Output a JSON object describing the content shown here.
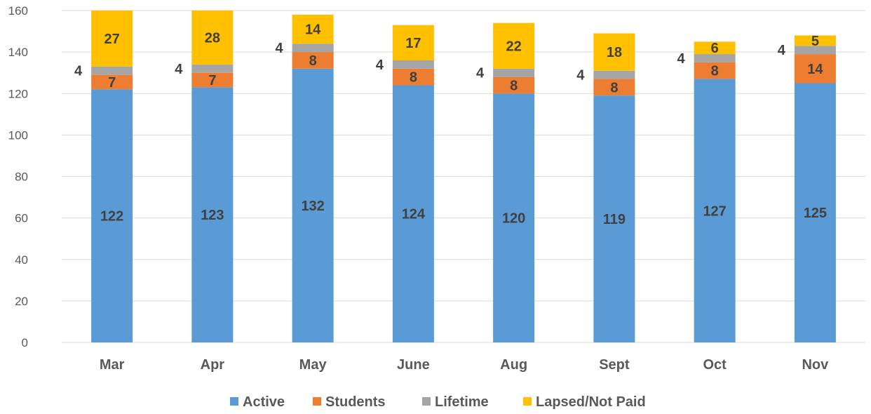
{
  "chart_data": {
    "type": "bar",
    "stacked": true,
    "categories": [
      "Mar",
      "Apr",
      "May",
      "June",
      "Aug",
      "Sept",
      "Oct",
      "Nov"
    ],
    "series": [
      {
        "name": "Active",
        "values": [
          122,
          123,
          132,
          124,
          120,
          119,
          127,
          125
        ],
        "color": "#5B9BD5"
      },
      {
        "name": "Students",
        "values": [
          7,
          7,
          8,
          8,
          8,
          8,
          8,
          14
        ],
        "color": "#ED7D31"
      },
      {
        "name": "Lifetime",
        "values": [
          4,
          4,
          4,
          4,
          4,
          4,
          4,
          4
        ],
        "color": "#A5A5A5"
      },
      {
        "name": "Lapsed/Not Paid",
        "values": [
          27,
          28,
          14,
          17,
          22,
          18,
          6,
          5
        ],
        "color": "#FFC000"
      }
    ],
    "yticks": [
      "0",
      "20",
      "40",
      "60",
      "80",
      "100",
      "120",
      "140",
      "160"
    ],
    "ylim": [
      0,
      160
    ],
    "title": "",
    "xlabel": "",
    "ylabel": "",
    "grid": true,
    "legend_position": "bottom",
    "colors": {
      "gridline": "#D9D9D9",
      "axis_text": "#595959",
      "data_label": "#404040"
    }
  }
}
